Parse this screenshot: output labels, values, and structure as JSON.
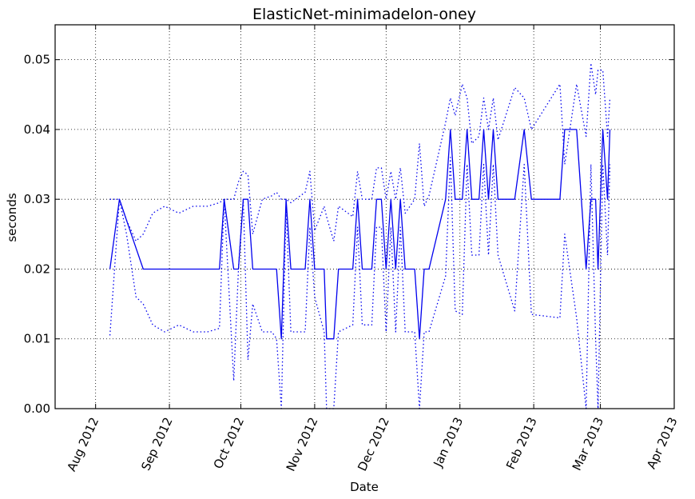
{
  "chart_data": {
    "type": "line",
    "title": "ElasticNet-minimadelon-oney",
    "xlabel": "Date",
    "ylabel": "seconds",
    "xlim": [
      "2012-07-15",
      "2013-04-01"
    ],
    "ylim": [
      0,
      0.055
    ],
    "grid": true,
    "x_ticks": [
      "2012-08-01",
      "2012-09-01",
      "2012-10-01",
      "2012-11-01",
      "2012-12-01",
      "2013-01-01",
      "2013-02-01",
      "2013-03-01",
      "2013-04-01"
    ],
    "x_tick_labels": [
      "Aug 2012",
      "Sep 2012",
      "Oct 2012",
      "Nov 2012",
      "Dec 2012",
      "Jan 2013",
      "Feb 2013",
      "Mar 2013",
      "Apr 2013"
    ],
    "y_ticks": [
      0.0,
      0.01,
      0.02,
      0.03,
      0.04,
      0.05
    ],
    "y_tick_labels": [
      "0.00",
      "0.01",
      "0.02",
      "0.03",
      "0.04",
      "0.05"
    ],
    "color": "#0000ee",
    "series": [
      {
        "style": "solid",
        "points": [
          [
            "2012-08-07",
            0.02
          ],
          [
            "2012-08-11",
            0.03
          ],
          [
            "2012-08-14",
            0.027
          ],
          [
            "2012-08-18",
            0.023
          ],
          [
            "2012-08-21",
            0.02
          ],
          [
            "2012-08-25",
            0.02
          ],
          [
            "2012-08-30",
            0.02
          ],
          [
            "2012-09-05",
            0.02
          ],
          [
            "2012-09-11",
            0.02
          ],
          [
            "2012-09-17",
            0.02
          ],
          [
            "2012-09-22",
            0.02
          ],
          [
            "2012-09-24",
            0.03
          ],
          [
            "2012-09-28",
            0.02
          ],
          [
            "2012-09-30",
            0.02
          ],
          [
            "2012-10-02",
            0.03
          ],
          [
            "2012-10-04",
            0.03
          ],
          [
            "2012-10-06",
            0.02
          ],
          [
            "2012-10-10",
            0.02
          ],
          [
            "2012-10-14",
            0.02
          ],
          [
            "2012-10-16",
            0.02
          ],
          [
            "2012-10-18",
            0.01
          ],
          [
            "2012-10-20",
            0.03
          ],
          [
            "2012-10-22",
            0.02
          ],
          [
            "2012-10-26",
            0.02
          ],
          [
            "2012-10-28",
            0.02
          ],
          [
            "2012-10-30",
            0.03
          ],
          [
            "2012-11-01",
            0.02
          ],
          [
            "2012-11-05",
            0.02
          ],
          [
            "2012-11-06",
            0.01
          ],
          [
            "2012-11-09",
            0.01
          ],
          [
            "2012-11-11",
            0.02
          ],
          [
            "2012-11-17",
            0.02
          ],
          [
            "2012-11-19",
            0.03
          ],
          [
            "2012-11-21",
            0.02
          ],
          [
            "2012-11-25",
            0.02
          ],
          [
            "2012-11-27",
            0.03
          ],
          [
            "2012-11-29",
            0.03
          ],
          [
            "2012-12-01",
            0.02
          ],
          [
            "2012-12-03",
            0.03
          ],
          [
            "2012-12-05",
            0.02
          ],
          [
            "2012-12-07",
            0.03
          ],
          [
            "2012-12-09",
            0.02
          ],
          [
            "2012-12-13",
            0.02
          ],
          [
            "2012-12-15",
            0.01
          ],
          [
            "2012-12-17",
            0.02
          ],
          [
            "2012-12-19",
            0.02
          ],
          [
            "2012-12-26",
            0.03
          ],
          [
            "2012-12-28",
            0.04
          ],
          [
            "2012-12-30",
            0.03
          ],
          [
            "2013-01-02",
            0.03
          ],
          [
            "2013-01-04",
            0.04
          ],
          [
            "2013-01-06",
            0.03
          ],
          [
            "2013-01-09",
            0.03
          ],
          [
            "2013-01-11",
            0.04
          ],
          [
            "2013-01-13",
            0.03
          ],
          [
            "2013-01-15",
            0.04
          ],
          [
            "2013-01-17",
            0.03
          ],
          [
            "2013-01-24",
            0.03
          ],
          [
            "2013-01-28",
            0.04
          ],
          [
            "2013-01-31",
            0.03
          ],
          [
            "2013-02-12",
            0.03
          ],
          [
            "2013-02-14",
            0.04
          ],
          [
            "2013-02-19",
            0.04
          ],
          [
            "2013-02-23",
            0.02
          ],
          [
            "2013-02-25",
            0.03
          ],
          [
            "2013-02-27",
            0.03
          ],
          [
            "2013-02-28",
            0.02
          ],
          [
            "2013-03-02",
            0.04
          ],
          [
            "2013-03-04",
            0.03
          ],
          [
            "2013-03-05",
            0.04
          ]
        ]
      },
      {
        "style": "dotted",
        "points": [
          [
            "2012-08-07",
            0.0105
          ],
          [
            "2012-08-11",
            0.03
          ],
          [
            "2012-08-14",
            0.027
          ],
          [
            "2012-08-18",
            0.024
          ],
          [
            "2012-08-21",
            0.025
          ],
          [
            "2012-08-25",
            0.028
          ],
          [
            "2012-08-30",
            0.029
          ],
          [
            "2012-09-05",
            0.028
          ],
          [
            "2012-09-11",
            0.029
          ],
          [
            "2012-09-17",
            0.029
          ],
          [
            "2012-09-22",
            0.0295
          ],
          [
            "2012-09-24",
            0.03
          ],
          [
            "2012-09-28",
            0.03
          ],
          [
            "2012-09-30",
            0.0325
          ],
          [
            "2012-10-02",
            0.034
          ],
          [
            "2012-10-04",
            0.0335
          ],
          [
            "2012-10-06",
            0.025
          ],
          [
            "2012-10-10",
            0.03
          ],
          [
            "2012-10-14",
            0.0305
          ],
          [
            "2012-10-16",
            0.031
          ],
          [
            "2012-10-18",
            0.03
          ],
          [
            "2012-10-20",
            0.03
          ],
          [
            "2012-10-22",
            0.0295
          ],
          [
            "2012-10-26",
            0.0305
          ],
          [
            "2012-10-28",
            0.031
          ],
          [
            "2012-10-30",
            0.034
          ],
          [
            "2012-11-01",
            0.0255
          ],
          [
            "2012-11-05",
            0.029
          ],
          [
            "2012-11-06",
            0.0275
          ],
          [
            "2012-11-09",
            0.024
          ],
          [
            "2012-11-11",
            0.029
          ],
          [
            "2012-11-17",
            0.0275
          ],
          [
            "2012-11-19",
            0.034
          ],
          [
            "2012-11-21",
            0.03
          ],
          [
            "2012-11-25",
            0.03
          ],
          [
            "2012-11-27",
            0.0345
          ],
          [
            "2012-11-29",
            0.0345
          ],
          [
            "2012-12-01",
            0.03
          ],
          [
            "2012-12-03",
            0.034
          ],
          [
            "2012-12-05",
            0.03
          ],
          [
            "2012-12-07",
            0.0345
          ],
          [
            "2012-12-09",
            0.028
          ],
          [
            "2012-12-13",
            0.03
          ],
          [
            "2012-12-15",
            0.038
          ],
          [
            "2012-12-17",
            0.029
          ],
          [
            "2012-12-19",
            0.0305
          ],
          [
            "2012-12-26",
            0.041
          ],
          [
            "2012-12-28",
            0.0445
          ],
          [
            "2012-12-30",
            0.042
          ],
          [
            "2013-01-02",
            0.0465
          ],
          [
            "2013-01-04",
            0.0445
          ],
          [
            "2013-01-06",
            0.038
          ],
          [
            "2013-01-09",
            0.039
          ],
          [
            "2013-01-11",
            0.0445
          ],
          [
            "2013-01-13",
            0.04
          ],
          [
            "2013-01-15",
            0.0445
          ],
          [
            "2013-01-17",
            0.0385
          ],
          [
            "2013-01-24",
            0.046
          ],
          [
            "2013-01-28",
            0.0445
          ],
          [
            "2013-01-31",
            0.04
          ],
          [
            "2013-02-12",
            0.0465
          ],
          [
            "2013-02-14",
            0.035
          ],
          [
            "2013-02-19",
            0.0465
          ],
          [
            "2013-02-23",
            0.039
          ],
          [
            "2013-02-25",
            0.0495
          ],
          [
            "2013-02-27",
            0.045
          ],
          [
            "2013-02-28",
            0.0485
          ],
          [
            "2013-03-02",
            0.0485
          ],
          [
            "2013-03-04",
            0.039
          ],
          [
            "2013-03-05",
            0.0445
          ]
        ]
      },
      {
        "style": "dotted",
        "points": [
          [
            "2012-08-07",
            0.03
          ],
          [
            "2012-08-11",
            0.03
          ],
          [
            "2012-08-14",
            0.025
          ],
          [
            "2012-08-18",
            0.016
          ],
          [
            "2012-08-21",
            0.015
          ],
          [
            "2012-08-25",
            0.012
          ],
          [
            "2012-08-30",
            0.011
          ],
          [
            "2012-09-05",
            0.012
          ],
          [
            "2012-09-11",
            0.011
          ],
          [
            "2012-09-17",
            0.011
          ],
          [
            "2012-09-22",
            0.0115
          ],
          [
            "2012-09-24",
            0.03
          ],
          [
            "2012-09-28",
            0.004
          ],
          [
            "2012-09-30",
            0.02
          ],
          [
            "2012-10-02",
            0.03
          ],
          [
            "2012-10-04",
            0.007
          ],
          [
            "2012-10-06",
            0.015
          ],
          [
            "2012-10-10",
            0.011
          ],
          [
            "2012-10-14",
            0.011
          ],
          [
            "2012-10-16",
            0.01
          ],
          [
            "2012-10-18",
            0.0
          ],
          [
            "2012-10-20",
            0.029
          ],
          [
            "2012-10-22",
            0.011
          ],
          [
            "2012-10-26",
            0.011
          ],
          [
            "2012-10-28",
            0.011
          ],
          [
            "2012-10-30",
            0.026
          ],
          [
            "2012-11-01",
            0.016
          ],
          [
            "2012-11-05",
            0.011
          ],
          [
            "2012-11-06",
            0.0
          ],
          [
            "2012-11-09",
            0.0
          ],
          [
            "2012-11-11",
            0.011
          ],
          [
            "2012-11-17",
            0.012
          ],
          [
            "2012-11-19",
            0.026
          ],
          [
            "2012-11-21",
            0.012
          ],
          [
            "2012-11-25",
            0.012
          ],
          [
            "2012-11-27",
            0.026
          ],
          [
            "2012-11-29",
            0.026
          ],
          [
            "2012-12-01",
            0.011
          ],
          [
            "2012-12-03",
            0.026
          ],
          [
            "2012-12-05",
            0.011
          ],
          [
            "2012-12-07",
            0.026
          ],
          [
            "2012-12-09",
            0.011
          ],
          [
            "2012-12-13",
            0.011
          ],
          [
            "2012-12-15",
            0.0
          ],
          [
            "2012-12-17",
            0.011
          ],
          [
            "2012-12-19",
            0.011
          ],
          [
            "2012-12-26",
            0.019
          ],
          [
            "2012-12-28",
            0.036
          ],
          [
            "2012-12-30",
            0.014
          ],
          [
            "2013-01-02",
            0.0135
          ],
          [
            "2013-01-04",
            0.035
          ],
          [
            "2013-01-06",
            0.022
          ],
          [
            "2013-01-09",
            0.022
          ],
          [
            "2013-01-11",
            0.035
          ],
          [
            "2013-01-13",
            0.022
          ],
          [
            "2013-01-15",
            0.035
          ],
          [
            "2013-01-17",
            0.022
          ],
          [
            "2013-01-24",
            0.014
          ],
          [
            "2013-01-28",
            0.035
          ],
          [
            "2013-01-31",
            0.0135
          ],
          [
            "2013-02-12",
            0.013
          ],
          [
            "2013-02-14",
            0.025
          ],
          [
            "2013-02-19",
            0.013
          ],
          [
            "2013-02-23",
            0.0
          ],
          [
            "2013-02-25",
            0.035
          ],
          [
            "2013-02-27",
            0.01
          ],
          [
            "2013-02-28",
            0.0
          ],
          [
            "2013-03-02",
            0.035
          ],
          [
            "2013-03-04",
            0.022
          ],
          [
            "2013-03-05",
            0.035
          ]
        ]
      }
    ]
  }
}
